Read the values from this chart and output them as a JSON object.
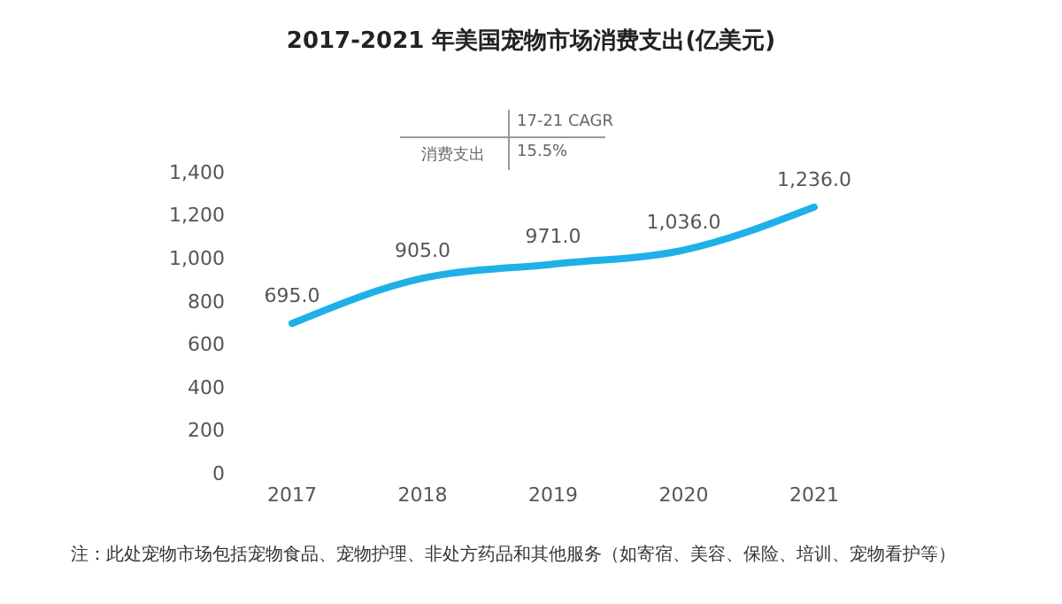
{
  "chart_data": {
    "type": "line",
    "title": "2017-2021 年美国宠物市场消费支出(亿美元)",
    "categories": [
      "2017",
      "2018",
      "2019",
      "2020",
      "2021"
    ],
    "series": [
      {
        "color": "#1fb0e8",
        "values": [
          695,
          905,
          971,
          1036,
          1236
        ],
        "value_labels": [
          "695.0",
          "905.0",
          "971.0",
          "1,036.0",
          "1,236.0"
        ]
      }
    ],
    "ylim": [
      0,
      1400
    ],
    "yticks": [
      0,
      200,
      400,
      600,
      800,
      {
        "value": 1000,
        "label": "1,000"
      },
      {
        "value": 1200,
        "label": "1,200"
      },
      {
        "value": 1400,
        "label": "1,400"
      }
    ],
    "grid": false,
    "legend": false,
    "marker": "none",
    "line_style": "solid",
    "annotations": [
      "17-21 CAGR",
      "消费支出",
      "15.5%",
      "注：此处宠物市场包括宠物食品、宠物护理、非处方药品和其他服务（如寄宿、美容、保险、培训、宠物看护等）"
    ]
  }
}
